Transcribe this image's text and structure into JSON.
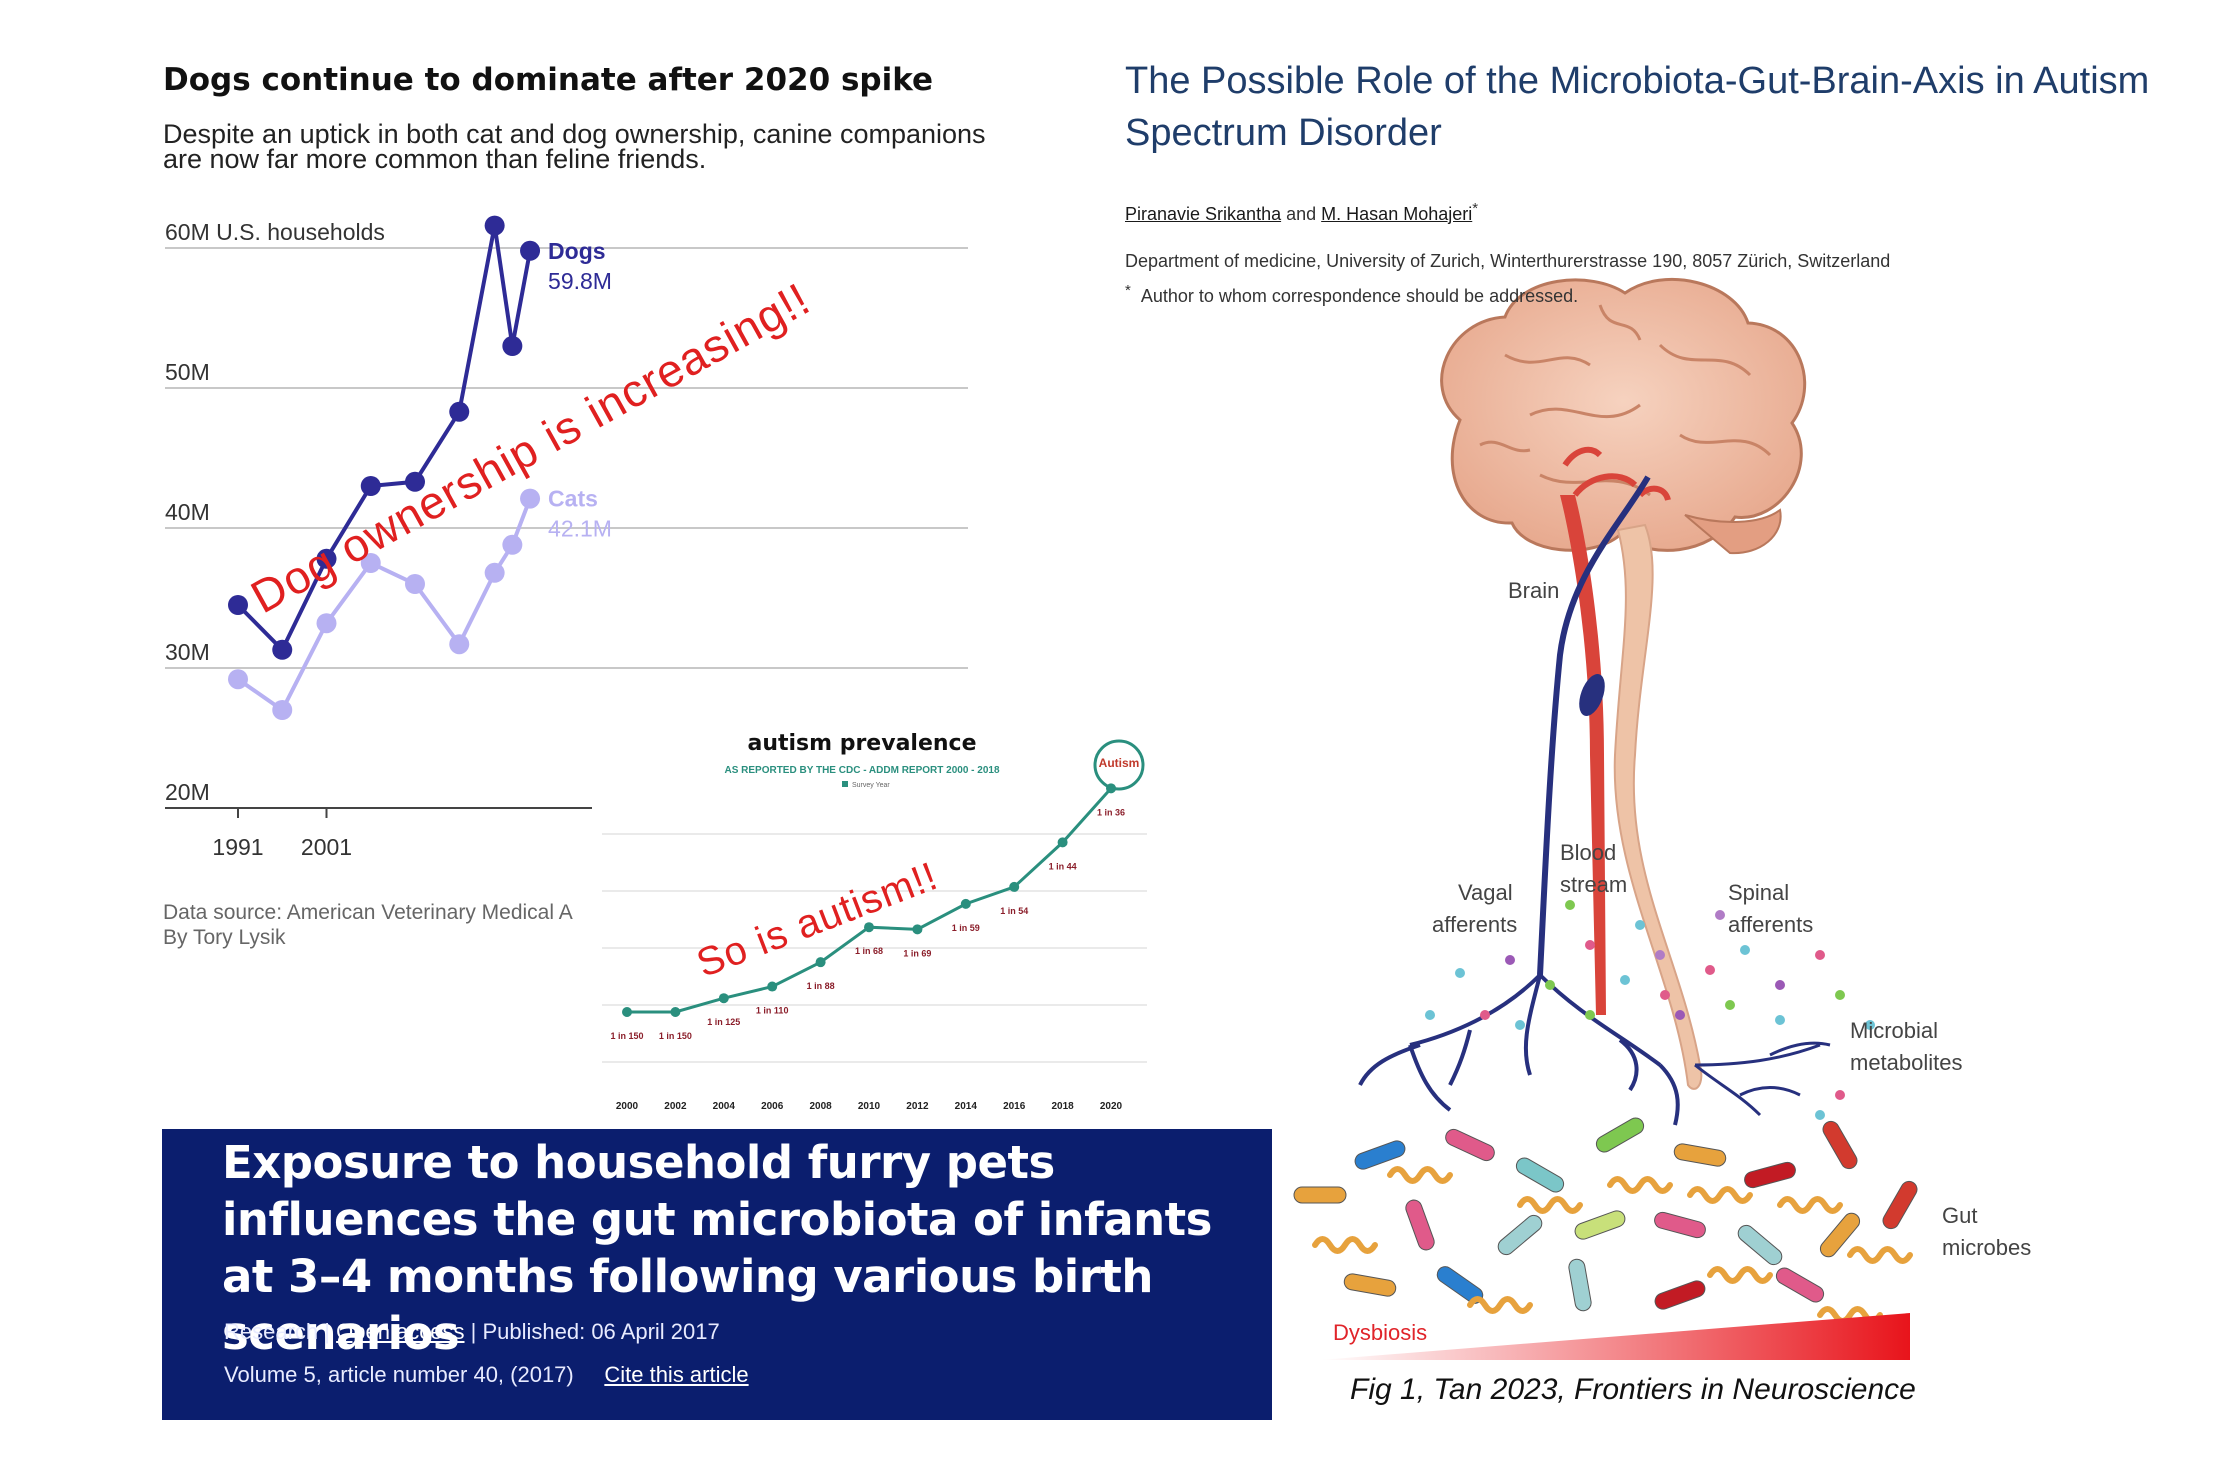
{
  "dogs_chart": {
    "title": "Dogs continue to dominate after 2020 spike",
    "subtitle": "Despite an uptick in both cat and dog ownership, canine companions are now far more common than feline friends.",
    "source_line1": "Data source: American Veterinary Medical A",
    "source_line2": "By Tory Lysik",
    "annotation": "Dog ownership is increasing!!"
  },
  "autism_chart": {
    "annotation": "So is autism!!"
  },
  "chart_data": [
    {
      "type": "line",
      "title": "Dogs continue to dominate after 2020 spike",
      "ylabel": "60M U.S. households",
      "ylim": [
        20,
        60
      ],
      "y_ticks": [
        "20M",
        "30M",
        "40M",
        "50M",
        "60M U.S. households"
      ],
      "x_ticks": [
        "1991",
        "2001"
      ],
      "x": [
        1991,
        1996,
        2001,
        2006,
        2011,
        2016,
        2020,
        2022,
        2024
      ],
      "series": [
        {
          "name": "Dogs",
          "end_label": "59.8M",
          "color": "#2e2b96",
          "values": [
            34.5,
            31.3,
            37.8,
            43.0,
            43.3,
            48.3,
            61.6,
            53.0,
            59.8
          ]
        },
        {
          "name": "Cats",
          "end_label": "42.1M",
          "color": "#b7b1f2",
          "values": [
            29.2,
            27.0,
            33.2,
            37.5,
            36.0,
            31.7,
            36.8,
            38.8,
            42.1
          ]
        }
      ],
      "grid": true
    },
    {
      "type": "line",
      "title": "autism prevalence",
      "subtitle": "AS REPORTED BY THE CDC - ADDM REPORT 2000 - 2018",
      "legend": "Survey Year",
      "x": [
        "2000",
        "2002",
        "2004",
        "2006",
        "2008",
        "2010",
        "2012",
        "2014",
        "2016",
        "2018",
        "2020"
      ],
      "point_labels": [
        "1 in 150",
        "1 in 150",
        "1 in 125",
        "1 in 110",
        "1 in 88",
        "1 in 68",
        "1 in 69",
        "1 in 59",
        "1 in 54",
        "1 in 44",
        "1 in 36"
      ],
      "values_per_1000": [
        6.7,
        6.7,
        8.0,
        9.1,
        11.4,
        14.7,
        14.5,
        16.9,
        18.5,
        22.7,
        27.8
      ],
      "color": "#2a8f7e",
      "badge": "Autism"
    }
  ],
  "paper_banner": {
    "title": "Exposure to household furry pets influences the gut microbiota of infants at 3–4 months following various birth scenarios",
    "type": "Research",
    "access": "Open access",
    "published": "Published: 06 April 2017",
    "volume": "Volume 5, article number 40, (2017)",
    "cite": "Cite this article"
  },
  "article": {
    "title": "The Possible Role of the Microbiota-Gut-Brain-Axis in Autism Spectrum Disorder",
    "author1": "Piranavie Srikantha",
    "and": "and",
    "author2": "M. Hasan Mohajeri",
    "affiliation": "Department of medicine, University of Zurich, Winterthurerstrasse 190, 8057 Zürich, Switzerland",
    "note_mark": "*",
    "note": "Author to whom correspondence should be addressed.",
    "labels": {
      "brain": "Brain",
      "blood1": "Blood",
      "blood2": "stream",
      "vagal1": "Vagal",
      "vagal2": "afferents",
      "spinal1": "Spinal",
      "spinal2": "afferents",
      "microbial1": "Microbial",
      "microbial2": "metabolites",
      "gut1": "Gut",
      "gut2": "microbes",
      "dysbiosis": "Dysbiosis"
    },
    "caption": "Fig 1, Tan 2023, Frontiers in Neuroscience"
  }
}
